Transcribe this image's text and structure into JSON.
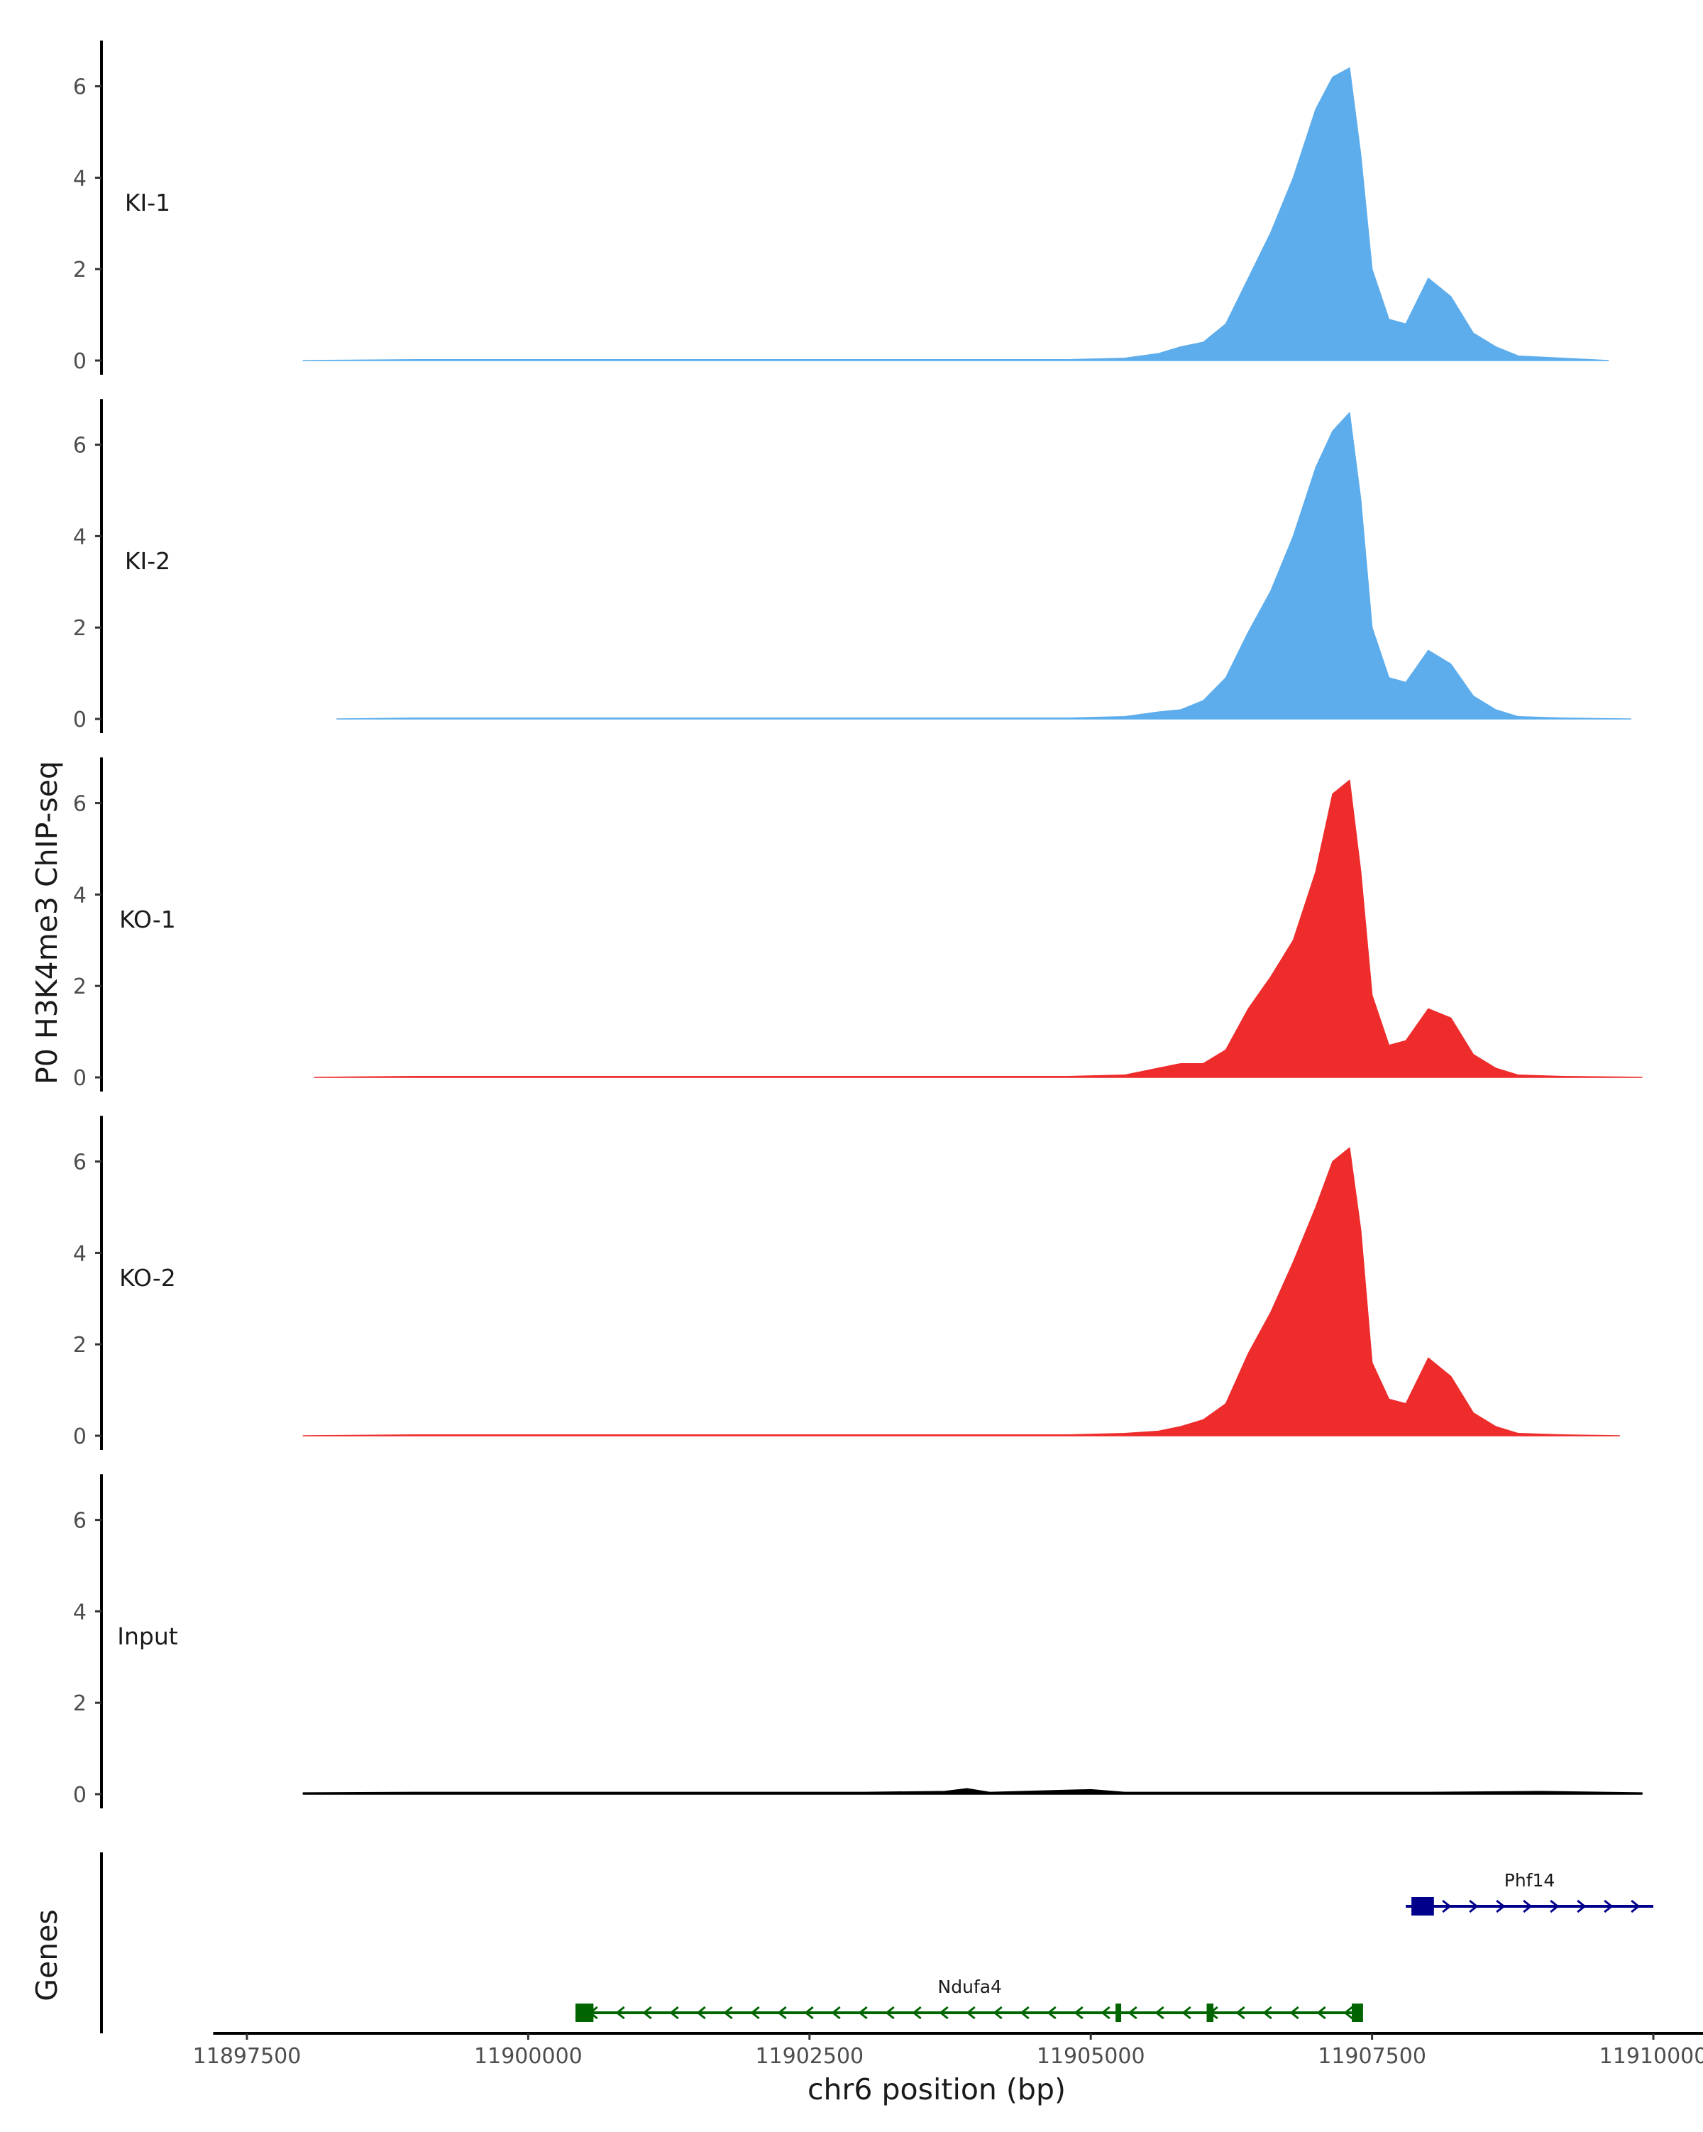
{
  "chart_data": {
    "type": "area",
    "title": "",
    "ylabel": "P0 H3K4me3 ChIP-seq",
    "xlabel": "chr6 position (bp)",
    "ylim": [
      0,
      7
    ],
    "y_ticks": [
      0,
      2,
      4,
      6
    ],
    "xlim": [
      11897200,
      11910600
    ],
    "x_ticks": [
      11897500,
      11900000,
      11902500,
      11905000,
      11907500,
      11910000
    ],
    "x_tick_labels": [
      "11897500",
      "11900000",
      "11902500",
      "11905000",
      "11907500",
      "11910000"
    ],
    "tracks": [
      {
        "name": "KI-1",
        "color": "#5dadec",
        "x": [
          11898000,
          11899000,
          11900000,
          11901000,
          11902000,
          11903000,
          11904000,
          11904800,
          11905300,
          11905600,
          11905800,
          11906000,
          11906200,
          11906400,
          11906600,
          11906800,
          11907000,
          11907150,
          11907300,
          11907400,
          11907500,
          11907650,
          11907800,
          11908000,
          11908200,
          11908400,
          11908600,
          11908800,
          11909200,
          11909600
        ],
        "y": [
          0,
          0.02,
          0.02,
          0.02,
          0.02,
          0.02,
          0.02,
          0.02,
          0.05,
          0.15,
          0.3,
          0.4,
          0.8,
          1.8,
          2.8,
          4.0,
          5.5,
          6.2,
          6.4,
          4.5,
          2.0,
          0.9,
          0.8,
          1.8,
          1.4,
          0.6,
          0.3,
          0.1,
          0.05,
          0
        ]
      },
      {
        "name": "KI-2",
        "color": "#5dadec",
        "x": [
          11898300,
          11899000,
          11900000,
          11901000,
          11902000,
          11903000,
          11904000,
          11904800,
          11905300,
          11905600,
          11905800,
          11906000,
          11906200,
          11906400,
          11906600,
          11906800,
          11907000,
          11907150,
          11907300,
          11907400,
          11907500,
          11907650,
          11907800,
          11908000,
          11908200,
          11908400,
          11908600,
          11908800,
          11909200,
          11909800
        ],
        "y": [
          0,
          0.02,
          0.02,
          0.02,
          0.02,
          0.02,
          0.02,
          0.02,
          0.05,
          0.15,
          0.2,
          0.4,
          0.9,
          1.9,
          2.8,
          4.0,
          5.5,
          6.3,
          6.7,
          4.8,
          2.0,
          0.9,
          0.8,
          1.5,
          1.2,
          0.5,
          0.2,
          0.05,
          0.02,
          0
        ]
      },
      {
        "name": "KO-1",
        "color": "#ee2c2c",
        "x": [
          11898100,
          11899000,
          11900000,
          11901000,
          11902000,
          11903000,
          11904000,
          11904800,
          11905300,
          11905600,
          11905800,
          11906000,
          11906200,
          11906400,
          11906600,
          11906800,
          11907000,
          11907150,
          11907300,
          11907400,
          11907500,
          11907650,
          11907800,
          11908000,
          11908200,
          11908400,
          11908600,
          11908800,
          11909200,
          11909900
        ],
        "y": [
          0,
          0.02,
          0.02,
          0.02,
          0.02,
          0.02,
          0.02,
          0.02,
          0.05,
          0.2,
          0.3,
          0.3,
          0.6,
          1.5,
          2.2,
          3.0,
          4.5,
          6.2,
          6.5,
          4.5,
          1.8,
          0.7,
          0.8,
          1.5,
          1.3,
          0.5,
          0.2,
          0.05,
          0.02,
          0
        ]
      },
      {
        "name": "KO-2",
        "color": "#ee2c2c",
        "x": [
          11898000,
          11899000,
          11900000,
          11901000,
          11902000,
          11903000,
          11904000,
          11904800,
          11905300,
          11905600,
          11905800,
          11906000,
          11906200,
          11906400,
          11906600,
          11906800,
          11907000,
          11907150,
          11907300,
          11907400,
          11907500,
          11907650,
          11907800,
          11908000,
          11908200,
          11908400,
          11908600,
          11908800,
          11909200,
          11909700
        ],
        "y": [
          0,
          0.02,
          0.02,
          0.02,
          0.02,
          0.02,
          0.02,
          0.02,
          0.05,
          0.1,
          0.2,
          0.35,
          0.7,
          1.8,
          2.7,
          3.8,
          5.0,
          6.0,
          6.3,
          4.5,
          1.6,
          0.8,
          0.7,
          1.7,
          1.3,
          0.5,
          0.2,
          0.05,
          0.02,
          0
        ]
      },
      {
        "name": "Input",
        "color": "#000000",
        "x": [
          11898000,
          11899000,
          11900000,
          11901000,
          11902000,
          11903000,
          11903700,
          11903900,
          11904100,
          11905000,
          11905300,
          11906000,
          11907000,
          11908000,
          11909000,
          11909900
        ],
        "y": [
          0.03,
          0.04,
          0.04,
          0.04,
          0.04,
          0.04,
          0.06,
          0.12,
          0.04,
          0.1,
          0.04,
          0.04,
          0.04,
          0.04,
          0.06,
          0.03
        ]
      }
    ],
    "genes_label": "Genes",
    "genes": [
      {
        "name": "Phf14",
        "strand": "+",
        "color": "#00008b",
        "start": 11907800,
        "end": 11910000,
        "exons": [
          [
            11907850,
            11908050
          ]
        ]
      },
      {
        "name": "Ndufa4",
        "strand": "-",
        "color": "#006400",
        "start": 11900450,
        "end": 11907400,
        "exons": [
          [
            11900420,
            11900580
          ],
          [
            11905220,
            11905260
          ],
          [
            11906030,
            11906090
          ],
          [
            11907320,
            11907420
          ]
        ]
      }
    ]
  }
}
